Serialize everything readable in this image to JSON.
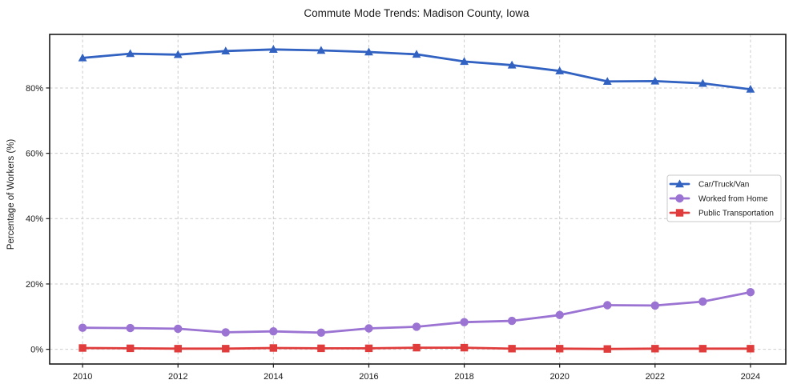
{
  "figure": {
    "title": "Commute Mode Trends: Madison County, Iowa",
    "ylabel": "Percentage of Workers (%)"
  },
  "chart_data": {
    "type": "line",
    "title": "Commute Mode Trends: Madison County, Iowa",
    "xlabel": "",
    "ylabel": "Percentage of Workers (%)",
    "x": [
      2010,
      2011,
      2012,
      2013,
      2014,
      2015,
      2016,
      2017,
      2018,
      2019,
      2020,
      2021,
      2022,
      2023,
      2024
    ],
    "xticks": [
      2010,
      2012,
      2014,
      2016,
      2018,
      2020,
      2022,
      2024
    ],
    "xtick_labels": [
      "2010",
      "2012",
      "2014",
      "2016",
      "2018",
      "2020",
      "2022",
      "2024"
    ],
    "yticks": [
      0,
      20,
      40,
      60,
      80
    ],
    "ytick_labels": [
      "0%",
      "20%",
      "40%",
      "60%",
      "80%"
    ],
    "xlim": [
      2009.31,
      2024.74
    ],
    "ylim": [
      -4.5,
      96.4
    ],
    "grid": true,
    "legend_position": "center right",
    "series": [
      {
        "name": "Car/Truck/Van",
        "marker": "triangle",
        "color": "#3161c1",
        "values": [
          89.2,
          90.5,
          90.2,
          91.3,
          91.8,
          91.5,
          91.0,
          90.3,
          88.1,
          87.0,
          85.2,
          82.0,
          82.1,
          81.4,
          79.6
        ]
      },
      {
        "name": "Worked from Home",
        "marker": "circle",
        "color": "#9b73d2",
        "values": [
          6.6,
          6.5,
          6.3,
          5.2,
          5.5,
          5.1,
          6.4,
          6.9,
          8.3,
          8.7,
          10.5,
          13.5,
          13.4,
          14.6,
          17.5
        ]
      },
      {
        "name": "Public Transportation",
        "marker": "square",
        "color": "#e03c3c",
        "values": [
          0.4,
          0.3,
          0.2,
          0.2,
          0.4,
          0.3,
          0.3,
          0.5,
          0.5,
          0.2,
          0.2,
          0.1,
          0.2,
          0.2,
          0.2
        ]
      }
    ]
  },
  "style": {
    "grid_color": "#cccccc",
    "axis_color": "#1a1a1a",
    "text_color": "#1a1a1a",
    "legend_border_color": "#c8c8c8",
    "background_color": "#ffffff"
  }
}
